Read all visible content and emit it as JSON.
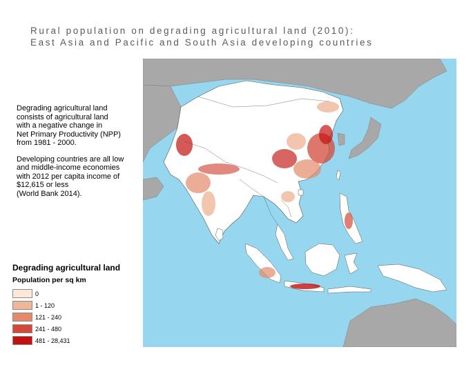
{
  "title": {
    "line1": "Rural population on degrading agricultural land (2010):",
    "line2": "East Asia and Pacific and South Asia developing countries"
  },
  "description": {
    "para1": "Degrading agricultural land\nconsists of agricultural land\nwith a negative change in\nNet Primary Productivity (NPP)\nfrom 1981 - 2000.",
    "para2": "Developing countries are all low\nand middle-income economies\nwith 2012 per capita income of\n$12,615 or less\n(World Bank 2014)."
  },
  "legend": {
    "title": "Degrading agricultural land",
    "subtitle": "Population per sq km",
    "items": [
      {
        "label": "0",
        "color": "#fde8d8"
      },
      {
        "label": "1 - 120",
        "color": "#efb79a"
      },
      {
        "label": "121 - 240",
        "color": "#e48a6a"
      },
      {
        "label": "241 - 480",
        "color": "#d34a3a"
      },
      {
        "label": "481 - 28,431",
        "color": "#c2120f"
      }
    ]
  },
  "map_colors": {
    "ocean": "#96d6ef",
    "other_land": "#a8a8a8",
    "developing_land": "#ffffff",
    "border": "#555555"
  }
}
